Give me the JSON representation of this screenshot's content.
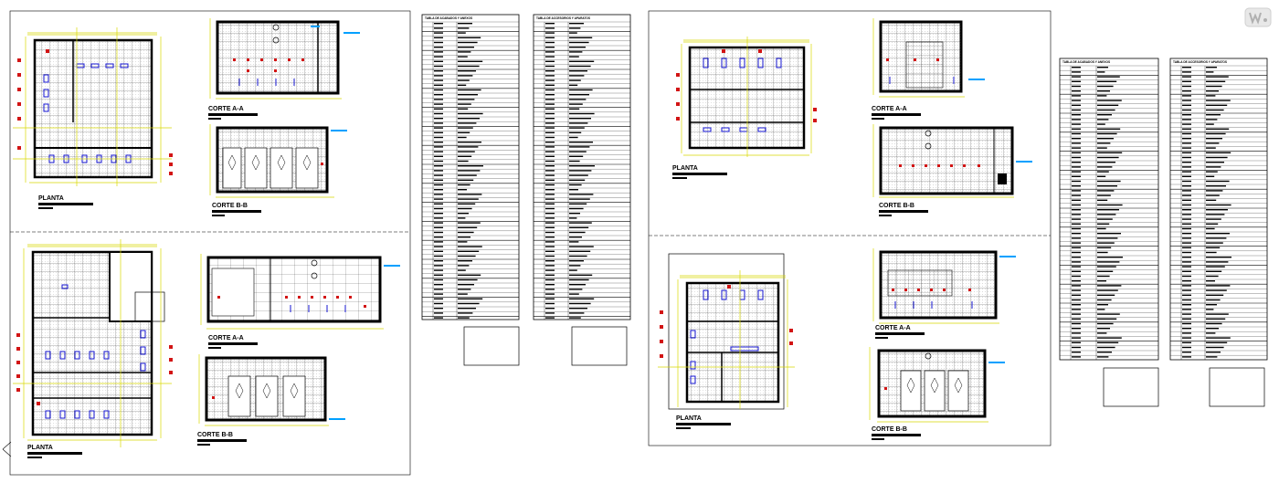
{
  "labels": {
    "planta": "PLANTA",
    "corte_aa": "CORTE A-A",
    "corte_bb": "CORTE B-B"
  },
  "tables": {
    "acabados_title": "TABLA DE ACABADOS Y ANEXOS",
    "accesorios_title": "TABLA DE ACCESORIOS Y APARATOS"
  },
  "colors": {
    "wall": "#000000",
    "dimension": "#d9d900",
    "fixture": "#1414d2",
    "note": "#d21414",
    "tag": "#00a0ff"
  }
}
